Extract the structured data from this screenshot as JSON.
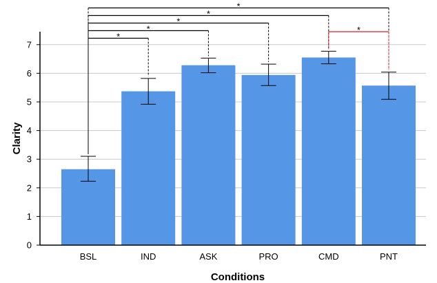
{
  "chart_data": {
    "type": "bar",
    "categories": [
      "BSL",
      "IND",
      "ASK",
      "PRO",
      "CMD",
      "PNT"
    ],
    "values": [
      2.65,
      5.37,
      6.28,
      5.94,
      6.55,
      5.57
    ],
    "error_low": [
      2.23,
      4.92,
      6.02,
      5.57,
      6.33,
      5.09
    ],
    "error_high": [
      3.1,
      5.82,
      6.53,
      6.32,
      6.77,
      6.04
    ],
    "xlabel": "Conditions",
    "ylabel": "Clarity",
    "ylim": [
      0,
      7
    ],
    "yticks": [
      0,
      1,
      2,
      3,
      4,
      5,
      6,
      7
    ],
    "grid": true,
    "bar_color": "#5596e6",
    "significance": [
      {
        "from": "BSL",
        "to": "PNT",
        "label": "*",
        "color": "#000000"
      },
      {
        "from": "BSL",
        "to": "CMD",
        "label": "*",
        "color": "#000000"
      },
      {
        "from": "BSL",
        "to": "PRO",
        "label": "*",
        "color": "#000000"
      },
      {
        "from": "BSL",
        "to": "ASK",
        "label": "*",
        "color": "#000000"
      },
      {
        "from": "BSL",
        "to": "IND",
        "label": "*",
        "color": "#000000"
      },
      {
        "from": "CMD",
        "to": "PNT",
        "label": "*",
        "color": "#e8192c"
      }
    ]
  }
}
